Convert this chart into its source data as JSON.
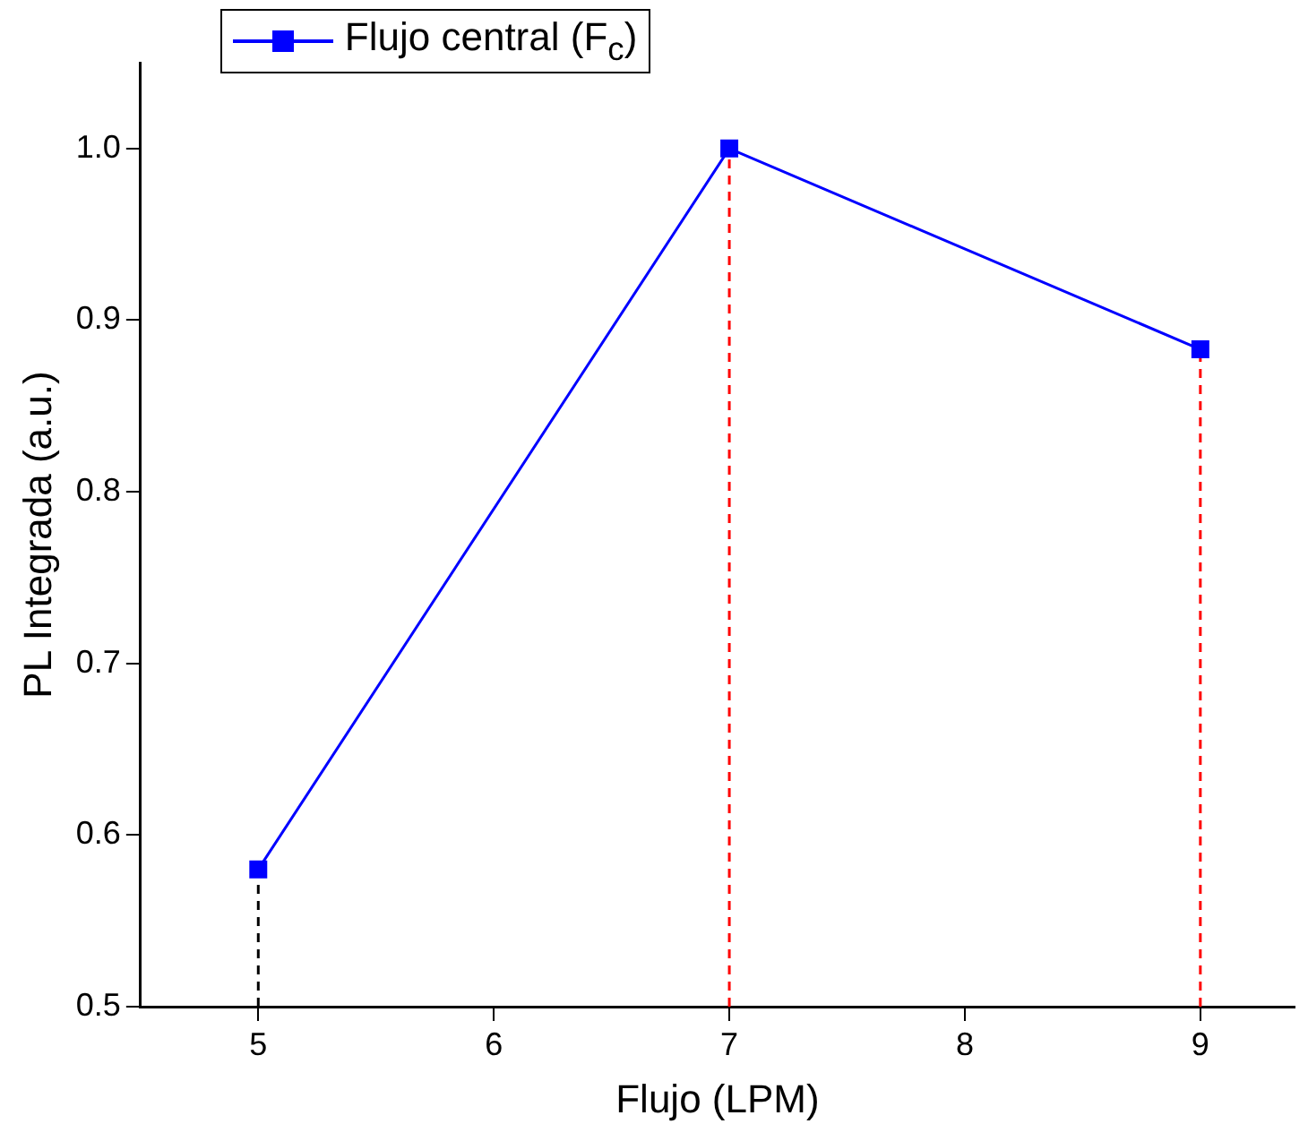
{
  "chart_data": {
    "type": "line",
    "xlabel": "Flujo (LPM)",
    "ylabel": "PL Integrada (a.u.)",
    "xlim": [
      4.5,
      9.4
    ],
    "xticks": [
      5,
      6,
      7,
      8,
      9
    ],
    "ylim": [
      0.5,
      1.05
    ],
    "yticks": [
      0.5,
      0.6,
      0.7,
      0.8,
      0.9,
      {
        "value": 1,
        "label": "1.0"
      }
    ],
    "grid": false,
    "legend": "top left",
    "marker": "square",
    "line_style": "solid",
    "series": [
      {
        "name": "Flujo central (F$_{c}$)",
        "color": "#0000ff",
        "x": [
          5,
          7,
          9
        ],
        "values": [
          0.58,
          1.0,
          0.883
        ]
      },
      {
        "type": "line",
        "color": "#000000",
        "x": [
          5,
          5
        ],
        "values": [
          0.5,
          0.58
        ],
        "line_style": "dashed",
        "marker": "none"
      },
      {
        "type": "line",
        "color": "#ff0000",
        "x": [
          7,
          7
        ],
        "values": [
          0.5,
          1.0
        ],
        "line_style": "dashed",
        "marker": "none"
      },
      {
        "type": "line",
        "color": "#ff0000",
        "x": [
          9,
          9
        ],
        "values": [
          0.5,
          0.883
        ],
        "line_style": "dashed",
        "marker": "none"
      }
    ]
  }
}
